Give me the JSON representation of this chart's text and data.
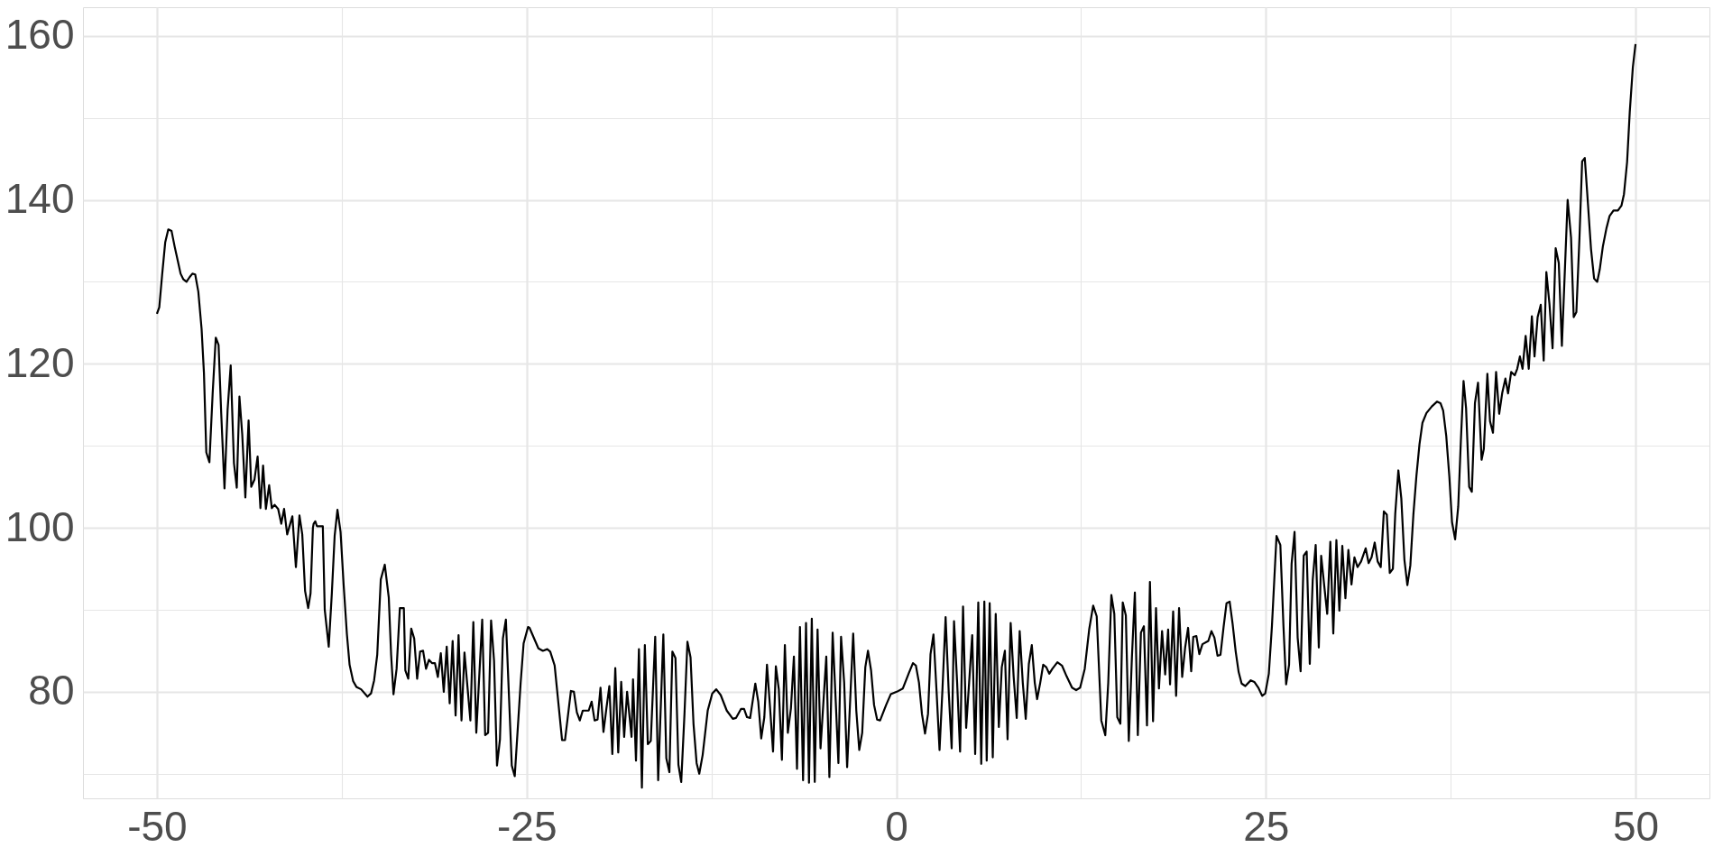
{
  "chart_data": {
    "type": "line",
    "grid": true,
    "line_style": "solid",
    "xlim": [
      -55,
      55
    ],
    "ylim": [
      67,
      163.5
    ],
    "xticks": [
      -50,
      {
        "value": -37.5,
        "label": null
      },
      -25,
      {
        "value": -12.5,
        "label": null
      },
      0,
      {
        "value": 12.5,
        "label": null
      },
      25,
      {
        "value": 37.5,
        "label": null
      },
      50
    ],
    "yticks": [
      {
        "value": 70,
        "label": null
      },
      80,
      {
        "value": 90,
        "label": null
      },
      100,
      {
        "value": 110,
        "label": null
      },
      120,
      {
        "value": 130,
        "label": null
      },
      140,
      {
        "value": 150,
        "label": null
      },
      160
    ],
    "series": [
      {
        "color": "#000000",
        "x": [
          -50.0,
          -49.84,
          -49.65,
          -49.44,
          -49.23,
          -49.01,
          -48.8,
          -48.58,
          -48.4,
          -48.21,
          -48.0,
          -47.78,
          -47.6,
          -47.41,
          -47.2,
          -46.98,
          -46.82,
          -46.66,
          -46.45,
          -46.23,
          -46.02,
          -45.83,
          -45.65,
          -45.43,
          -45.22,
          -45.01,
          -44.79,
          -44.6,
          -44.42,
          -44.23,
          -44.02,
          -43.8,
          -43.62,
          -43.4,
          -43.19,
          -43.0,
          -42.82,
          -42.63,
          -42.41,
          -42.23,
          -42.04,
          -41.8,
          -41.59,
          -41.4,
          -41.19,
          -40.84,
          -40.6,
          -40.36,
          -40.17,
          -39.98,
          -39.77,
          -39.61,
          -39.45,
          -39.4,
          -39.29,
          -39.18,
          -38.78,
          -38.65,
          -38.38,
          -38.17,
          -37.98,
          -37.79,
          -37.58,
          -37.37,
          -37.15,
          -36.97,
          -36.73,
          -36.51,
          -36.19,
          -35.76,
          -35.52,
          -35.31,
          -35.1,
          -34.86,
          -34.59,
          -34.32,
          -34.16,
          -34.0,
          -33.79,
          -33.57,
          -33.3,
          -33.2,
          -33.0,
          -32.8,
          -32.6,
          -32.4,
          -32.2,
          -32.0,
          -31.8,
          -31.6,
          -31.4,
          -31.2,
          -31.0,
          -30.8,
          -30.6,
          -30.4,
          -30.2,
          -30.0,
          -29.8,
          -29.6,
          -29.4,
          -29.2,
          -28.8,
          -28.6,
          -28.4,
          -28.0,
          -27.8,
          -27.6,
          -27.4,
          -27.2,
          -27.0,
          -26.8,
          -26.6,
          -26.4,
          -26.0,
          -25.8,
          -25.4,
          -25.2,
          -24.9,
          -24.8,
          -24.2,
          -23.9,
          -23.6,
          -23.4,
          -23.1,
          -22.6,
          -22.4,
          -22.0,
          -21.8,
          -21.6,
          -21.4,
          -21.2,
          -20.8,
          -20.6,
          -20.4,
          -20.2,
          -20.0,
          -19.8,
          -19.6,
          -19.4,
          -19.2,
          -19.0,
          -18.8,
          -18.6,
          -18.4,
          -18.2,
          -17.9,
          -17.8,
          -17.6,
          -17.4,
          -17.2,
          -17.0,
          -16.8,
          -16.6,
          -16.3,
          -16.1,
          -15.75,
          -15.55,
          -15.34,
          -15.14,
          -14.93,
          -14.73,
          -14.54,
          -14.32,
          -14.12,
          -13.91,
          -13.71,
          -13.5,
          -13.32,
          -13.09,
          -12.75,
          -12.44,
          -12.17,
          -11.87,
          -11.46,
          -11.05,
          -10.84,
          -10.5,
          -10.29,
          -10.09,
          -9.88,
          -9.53,
          -9.33,
          -9.13,
          -8.92,
          -8.74,
          -8.53,
          -8.33,
          -8.14,
          -7.94,
          -7.73,
          -7.53,
          -7.33,
          -7.12,
          -6.92,
          -6.71,
          -6.51,
          -6.3,
          -6.1,
          -5.9,
          -5.71,
          -5.51,
          -5.32,
          -5.12,
          -4.73,
          -4.52,
          -4.3,
          -4.09,
          -3.91,
          -3.73,
          -3.52,
          -3.32,
          -2.91,
          -2.7,
          -2.5,
          -2.3,
          -2.09,
          -1.91,
          -1.7,
          -1.5,
          -1.29,
          -1.09,
          -0.68,
          -0.37,
          0.04,
          0.45,
          0.86,
          1.13,
          1.33,
          1.54,
          1.74,
          1.95,
          2.15,
          2.32,
          2.52,
          2.73,
          2.93,
          3.13,
          3.34,
          3.55,
          3.75,
          3.91,
          4.12,
          4.32,
          4.52,
          4.73,
          4.93,
          5.14,
          5.34,
          5.55,
          5.75,
          5.96,
          6.12,
          6.32,
          6.53,
          6.73,
          6.94,
          7.14,
          7.35,
          7.53,
          7.74,
          7.94,
          8.15,
          8.35,
          8.56,
          8.76,
          8.97,
          9.17,
          9.37,
          9.53,
          9.74,
          9.94,
          10.15,
          10.35,
          10.56,
          10.9,
          11.21,
          11.52,
          11.89,
          12.17,
          12.44,
          12.75,
          13.05,
          13.32,
          13.56,
          13.87,
          14.14,
          14.34,
          14.55,
          14.75,
          14.95,
          15.16,
          15.32,
          15.53,
          15.73,
          15.94,
          16.14,
          16.34,
          16.55,
          16.75,
          16.96,
          17.16,
          17.37,
          17.57,
          17.77,
          17.98,
          18.19,
          18.39,
          18.52,
          18.73,
          18.93,
          19.13,
          19.34,
          19.54,
          19.74,
          19.95,
          20.09,
          20.3,
          20.5,
          20.71,
          21.11,
          21.32,
          21.52,
          21.73,
          21.93,
          22.14,
          22.34,
          22.55,
          22.75,
          22.96,
          23.16,
          23.36,
          23.61,
          23.98,
          24.22,
          24.49,
          24.75,
          24.96,
          25.2,
          25.41,
          25.72,
          25.98,
          26.19,
          26.37,
          26.57,
          26.74,
          26.94,
          27.15,
          27.35,
          27.56,
          27.76,
          27.97,
          28.17,
          28.37,
          28.58,
          28.74,
          28.95,
          29.15,
          29.36,
          29.56,
          29.77,
          29.97,
          30.17,
          30.38,
          30.58,
          30.79,
          30.99,
          31.2,
          31.44,
          31.75,
          31.95,
          32.15,
          32.36,
          32.56,
          32.77,
          32.98,
          33.18,
          33.38,
          33.59,
          33.75,
          33.96,
          34.16,
          34.37,
          34.57,
          34.77,
          34.98,
          35.18,
          35.39,
          35.59,
          35.86,
          36.22,
          36.58,
          36.81,
          36.99,
          37.2,
          37.41,
          37.59,
          37.8,
          38.01,
          38.19,
          38.37,
          38.54,
          38.75,
          38.93,
          39.14,
          39.35,
          39.59,
          39.74,
          39.98,
          40.16,
          40.36,
          40.57,
          40.78,
          40.99,
          41.2,
          41.38,
          41.59,
          41.83,
          42.0,
          42.18,
          42.36,
          42.57,
          42.78,
          42.99,
          43.17,
          43.38,
          43.59,
          43.79,
          43.97,
          44.18,
          44.39,
          44.6,
          44.81,
          45.02,
          45.41,
          45.64,
          45.82,
          46.0,
          46.21,
          46.39,
          46.57,
          46.78,
          46.99,
          47.2,
          47.41,
          47.58,
          47.79,
          48.03,
          48.24,
          48.51,
          48.81,
          49.05,
          49.22,
          49.43,
          49.61,
          49.82,
          50.0
        ],
        "values": [
          126.1,
          126.9,
          130.8,
          134.8,
          136.4,
          136.2,
          134.3,
          132.5,
          131.0,
          130.3,
          130.0,
          130.6,
          131.0,
          130.9,
          128.8,
          124.3,
          118.9,
          109.2,
          108.0,
          116.4,
          123.2,
          122.3,
          113.9,
          104.8,
          114.4,
          119.8,
          107.9,
          104.9,
          116.0,
          111.4,
          103.7,
          113.1,
          105.0,
          105.9,
          108.7,
          102.4,
          107.6,
          102.3,
          105.2,
          102.4,
          102.8,
          102.3,
          100.5,
          102.3,
          99.2,
          101.4,
          95.2,
          101.5,
          99.2,
          92.3,
          90.2,
          92.0,
          100.0,
          100.5,
          100.8,
          100.2,
          100.2,
          90.0,
          85.5,
          92.0,
          99.0,
          102.2,
          99.5,
          93.0,
          87.0,
          83.3,
          81.3,
          80.6,
          80.3,
          79.4,
          79.8,
          81.4,
          84.5,
          93.7,
          95.5,
          91.5,
          84.5,
          79.7,
          82.8,
          90.2,
          90.2,
          82.6,
          81.6,
          87.7,
          86.5,
          81.6,
          84.9,
          85.0,
          82.8,
          83.9,
          83.5,
          83.5,
          81.8,
          84.7,
          80.0,
          85.5,
          78.6,
          86.2,
          77.1,
          86.9,
          76.5,
          84.8,
          76.5,
          88.5,
          75.0,
          88.8,
          74.7,
          75.0,
          88.7,
          83.8,
          71.0,
          74.2,
          86.5,
          88.8,
          71.0,
          69.7,
          81.1,
          85.9,
          87.9,
          87.8,
          85.3,
          85.0,
          85.2,
          84.9,
          83.2,
          74.1,
          74.1,
          80.1,
          80.0,
          77.5,
          76.5,
          77.7,
          77.7,
          78.8,
          76.5,
          76.6,
          80.5,
          75.1,
          78.0,
          80.7,
          72.4,
          82.9,
          72.6,
          81.2,
          74.5,
          80.0,
          74.5,
          81.5,
          71.6,
          85.2,
          68.3,
          85.7,
          73.6,
          74.0,
          86.7,
          69.2,
          87.0,
          71.9,
          70.2,
          84.9,
          84.1,
          71.1,
          69.0,
          77.3,
          86.1,
          84.2,
          76.1,
          71.3,
          70.0,
          72.3,
          77.7,
          79.8,
          80.3,
          79.6,
          77.7,
          76.7,
          76.8,
          77.9,
          77.9,
          76.9,
          76.8,
          81.0,
          78.8,
          74.3,
          76.9,
          83.3,
          78.0,
          72.7,
          83.1,
          80.3,
          71.7,
          85.7,
          75.0,
          78.0,
          84.3,
          70.6,
          87.9,
          69.2,
          88.4,
          68.9,
          88.9,
          69.0,
          87.6,
          73.1,
          84.3,
          69.6,
          87.2,
          78.8,
          71.3,
          86.7,
          81.1,
          70.8,
          87.1,
          77.7,
          72.9,
          75.0,
          83.0,
          85.0,
          82.6,
          78.4,
          76.6,
          76.5,
          78.4,
          79.7,
          80.0,
          80.4,
          82.3,
          83.5,
          83.2,
          81.1,
          77.3,
          74.9,
          77.3,
          84.6,
          87.0,
          80.0,
          72.9,
          80.4,
          89.1,
          80.0,
          73.1,
          88.6,
          81.1,
          72.7,
          90.4,
          75.6,
          81.1,
          86.9,
          72.4,
          90.9,
          71.2,
          91.0,
          71.6,
          90.8,
          72.0,
          89.5,
          75.7,
          83.0,
          85.0,
          74.2,
          88.4,
          81.9,
          76.8,
          87.4,
          81.1,
          76.7,
          83.4,
          85.7,
          81.1,
          79.1,
          81.1,
          83.3,
          83.0,
          82.2,
          82.8,
          83.6,
          83.2,
          81.9,
          80.5,
          80.2,
          80.5,
          82.8,
          87.6,
          90.5,
          89.2,
          76.5,
          74.7,
          81.1,
          91.8,
          89.5,
          76.9,
          76.1,
          90.9,
          89.3,
          74.0,
          84.2,
          92.1,
          74.7,
          87.2,
          88.0,
          75.9,
          93.4,
          76.4,
          90.2,
          80.4,
          87.4,
          82.1,
          87.6,
          80.9,
          89.8,
          79.5,
          90.2,
          81.8,
          85.4,
          87.8,
          82.5,
          86.7,
          86.8,
          84.6,
          85.8,
          86.2,
          87.4,
          86.6,
          84.4,
          84.5,
          87.9,
          90.8,
          91.0,
          88.3,
          84.9,
          82.4,
          81.0,
          80.7,
          81.4,
          81.2,
          80.5,
          79.5,
          79.8,
          82.2,
          88.0,
          99.0,
          97.9,
          88.0,
          80.9,
          83.3,
          95.6,
          99.5,
          86.6,
          82.5,
          96.6,
          97.1,
          83.4,
          93.7,
          97.9,
          85.4,
          96.6,
          92.9,
          89.5,
          98.3,
          87.1,
          98.5,
          89.9,
          97.8,
          91.4,
          97.3,
          93.1,
          96.4,
          95.2,
          95.9,
          97.5,
          95.7,
          96.4,
          98.2,
          95.9,
          95.2,
          102.0,
          101.6,
          94.5,
          95.0,
          101.7,
          107.0,
          103.6,
          96.1,
          93.0,
          95.4,
          101.7,
          106.3,
          110.2,
          112.8,
          114.0,
          114.8,
          115.4,
          115.2,
          114.3,
          111.2,
          106.2,
          100.7,
          98.6,
          102.6,
          110.7,
          117.9,
          114.6,
          105.0,
          104.4,
          115.2,
          117.7,
          108.3,
          109.6,
          118.8,
          113.0,
          111.6,
          119.0,
          113.9,
          116.5,
          118.2,
          116.4,
          119.0,
          118.6,
          119.4,
          120.9,
          119.4,
          123.4,
          119.4,
          125.8,
          120.9,
          125.7,
          127.2,
          120.4,
          131.2,
          127.3,
          121.9,
          134.1,
          132.3,
          122.2,
          140.0,
          135.4,
          125.7,
          126.3,
          135.4,
          144.7,
          145.1,
          139.6,
          134.0,
          130.4,
          130.0,
          131.5,
          134.3,
          136.5,
          138.0,
          138.7,
          138.7,
          139.3,
          140.7,
          144.6,
          150.7,
          156.2,
          159.0
        ]
      }
    ]
  }
}
